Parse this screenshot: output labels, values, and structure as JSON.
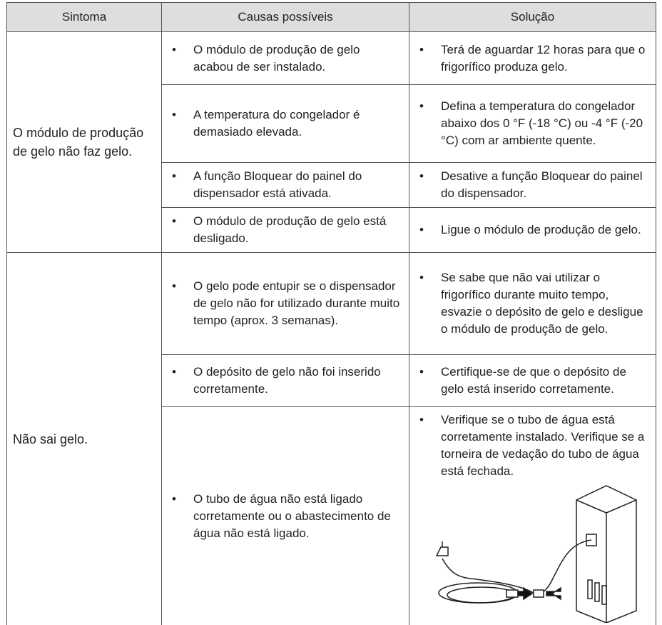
{
  "table": {
    "header": [
      "Sintoma",
      "Causas possíveis",
      "Solução"
    ],
    "groups": [
      {
        "symptom": "O módulo de produção de gelo não faz gelo.",
        "rows": [
          {
            "cause": "O módulo de produção de gelo acabou de ser instalado.",
            "solution": "Terá de aguardar 12 horas para que o frigorífico produza gelo."
          },
          {
            "cause": "A temperatura do congelador é demasiado elevada.",
            "solution": "Defina a temperatura do congelador abaixo dos 0 °F (-18 °C) ou -4 °F (-20 °C) com ar ambiente quente."
          },
          {
            "cause": "A função Bloquear do painel do dispensador está ativada.",
            "solution": "Desative a função Bloquear do painel do dispensador."
          },
          {
            "cause": "O módulo de produção de gelo está desligado.",
            "solution": "Ligue o módulo de produção de gelo."
          }
        ]
      },
      {
        "symptom": "Não sai gelo.",
        "rows": [
          {
            "cause": "O gelo pode entupir se o dispensador de gelo não for utilizado durante muito tempo (aprox. 3 semanas).",
            "solution": "Se sabe que não vai utilizar o frigorífico durante muito tempo, esvazie o depósito de gelo e desligue o módulo de produção de gelo."
          },
          {
            "cause": "O depósito de gelo não foi inserido corretamente.",
            "solution": "Certifique-se de que o depósito de gelo está inserido corretamente."
          },
          {
            "cause": "O tubo de água não está ligado corretamente ou o abastecimento de água não está ligado.",
            "solution": "Verifique se o tubo de água está corretamente instalado. Verifique se a torneira de vedação do tubo de água está fechada."
          }
        ]
      }
    ]
  }
}
